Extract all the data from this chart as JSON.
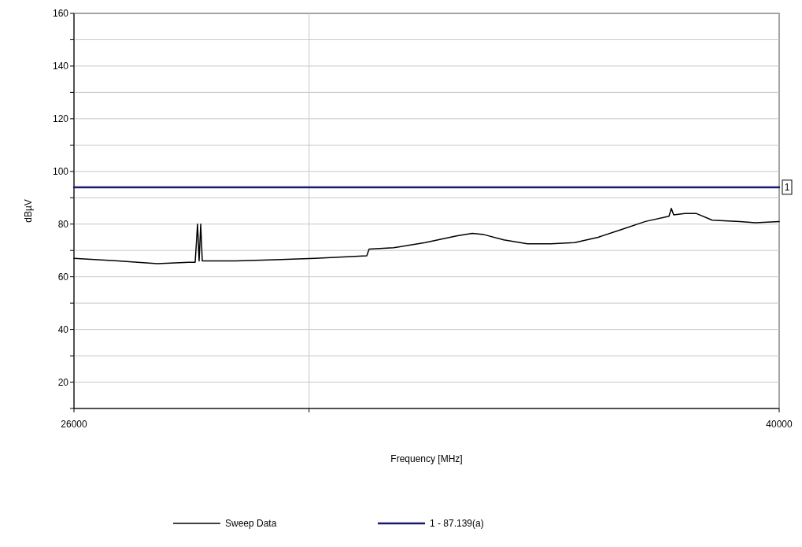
{
  "chart_data": {
    "type": "line",
    "xlabel": "Frequency [MHz]",
    "ylabel": "dBµV",
    "xlim": [
      26000,
      40000
    ],
    "xticks": [
      26000,
      {
        "value": 30667,
        "label": null
      },
      40000
    ],
    "ylim": [
      10,
      160
    ],
    "yticks": [
      {
        "value": 10,
        "label": null
      },
      20,
      {
        "value": 30,
        "label": null
      },
      40,
      {
        "value": 50,
        "label": null
      },
      60,
      {
        "value": 70,
        "label": null
      },
      80,
      {
        "value": 90,
        "label": null
      },
      100,
      {
        "value": 110,
        "label": null
      },
      120,
      {
        "value": 130,
        "label": null
      },
      140,
      {
        "value": 150,
        "label": null
      },
      160
    ],
    "grid": true,
    "legend": "bottom",
    "marker": "none",
    "line_style": "solid",
    "series": [
      {
        "name": "Sweep Data",
        "color": "#000000",
        "x": [
          26000,
          26875,
          27656,
          28281,
          28406,
          28453,
          28484,
          28516,
          28547,
          29219,
          30000,
          30781,
          31813,
          31859,
          32344,
          32969,
          33594,
          33906,
          34141,
          34531,
          35000,
          35469,
          35938,
          36406,
          36875,
          37344,
          37813,
          37859,
          37906,
          38125,
          38359,
          38672,
          39219,
          39531,
          40000
        ],
        "values": [
          67,
          66,
          65,
          65.5,
          65.5,
          80,
          66,
          80,
          66,
          66,
          66.5,
          67,
          68,
          70.5,
          71,
          73,
          75.5,
          76.5,
          76,
          74,
          72.5,
          72.5,
          73,
          75,
          78,
          81,
          83,
          86,
          83.5,
          84,
          84,
          81.5,
          81,
          80.5,
          81
        ]
      },
      {
        "name": "1 - 87.139(a)",
        "color": "#1a1a6e",
        "x": [
          26000,
          40000
        ],
        "values": [
          94,
          94
        ]
      }
    ],
    "annotations": [
      {
        "text": "1",
        "x": 40000,
        "y": 94
      }
    ]
  }
}
